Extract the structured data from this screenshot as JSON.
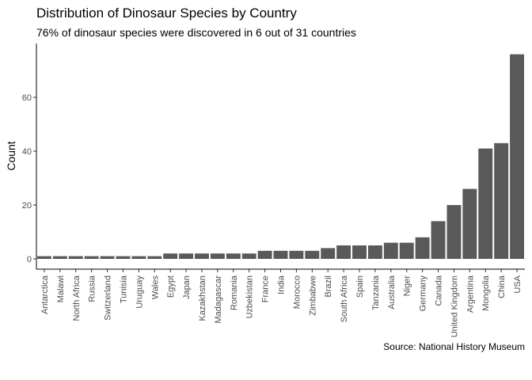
{
  "title": "Distribution of Dinosaur Species by Country",
  "subtitle": "76% of dinosaur species were discovered in 6 out of 31 countries",
  "caption": "Source: National History Museum",
  "colors": {
    "bar": "#595959",
    "background": "#ffffff",
    "axis": "#000000"
  },
  "chart_data": {
    "type": "bar",
    "title": "Distribution of Dinosaur Species by Country",
    "xlabel": "",
    "ylabel": "Count",
    "ylim": [
      0,
      80
    ],
    "yticks": [
      0,
      20,
      40,
      60
    ],
    "grid": false,
    "categories": [
      "Antarctica",
      "Malawi",
      "North Africa",
      "Russia",
      "Switzerland",
      "Tunisia",
      "Uruguay",
      "Wales",
      "Egypt",
      "Japan",
      "Kazakhstan",
      "Madagascar",
      "Romania",
      "Uzbekistan",
      "France",
      "India",
      "Morocco",
      "Zimbabwe",
      "Brazil",
      "South Africa",
      "Spain",
      "Tanzania",
      "Australia",
      "Niger",
      "Germany",
      "Canada",
      "United Kingdom",
      "Argentina",
      "Mongolia",
      "China",
      "USA"
    ],
    "values": [
      1,
      1,
      1,
      1,
      1,
      1,
      1,
      1,
      2,
      2,
      2,
      2,
      2,
      2,
      3,
      3,
      3,
      3,
      4,
      5,
      5,
      5,
      6,
      6,
      8,
      14,
      20,
      26,
      41,
      43,
      76
    ]
  }
}
